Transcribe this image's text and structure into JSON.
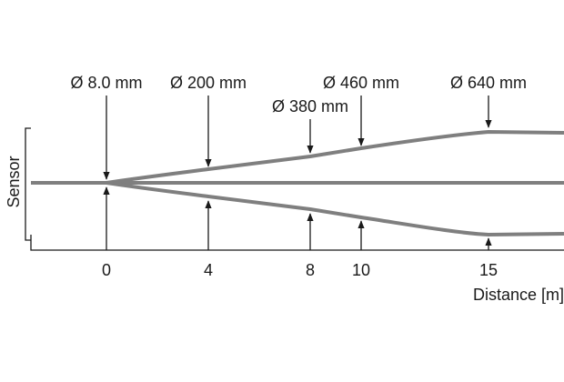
{
  "sensor_label": "Sensor",
  "axis_label": "Distance  [m]",
  "ticks": [
    0,
    4,
    8,
    10,
    15
  ],
  "annotations": [
    {
      "label": "Ø 8.0 mm",
      "distance": 0
    },
    {
      "label": "Ø 200 mm",
      "distance": 4
    },
    {
      "label": "Ø 380 mm",
      "distance": 8
    },
    {
      "label": "Ø 460 mm",
      "distance": 10
    },
    {
      "label": "Ø 640 mm",
      "distance": 15
    }
  ]
}
